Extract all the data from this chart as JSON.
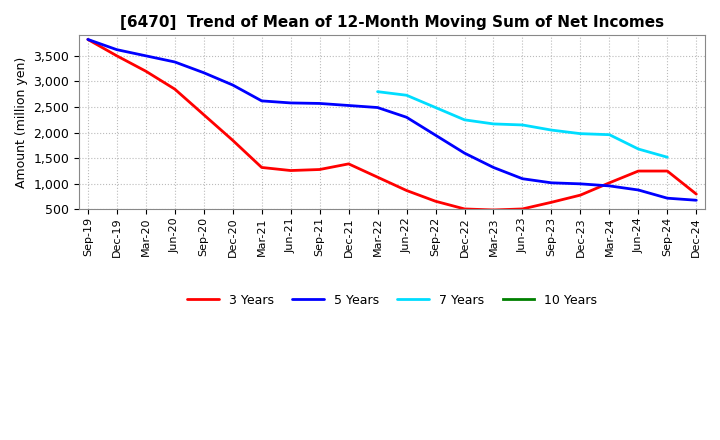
{
  "title": "[6470]  Trend of Mean of 12-Month Moving Sum of Net Incomes",
  "ylabel": "Amount (million yen)",
  "background_color": "#ffffff",
  "plot_background": "#ffffff",
  "grid_color": "#aaaaaa",
  "ylim": [
    500,
    3900
  ],
  "yticks": [
    500,
    1000,
    1500,
    2000,
    2500,
    3000,
    3500
  ],
  "x_labels": [
    "Sep-19",
    "Dec-19",
    "Mar-20",
    "Jun-20",
    "Sep-20",
    "Dec-20",
    "Mar-21",
    "Jun-21",
    "Sep-21",
    "Dec-21",
    "Mar-22",
    "Jun-22",
    "Sep-22",
    "Dec-22",
    "Mar-23",
    "Jun-23",
    "Sep-23",
    "Dec-23",
    "Mar-24",
    "Jun-24",
    "Sep-24",
    "Dec-24"
  ],
  "series": {
    "3 Years": {
      "color": "#ff0000",
      "linewidth": 2.0,
      "data_x": [
        0,
        1,
        2,
        3,
        4,
        5,
        6,
        7,
        8,
        9,
        10,
        11,
        12,
        13,
        14,
        15,
        16,
        17,
        18,
        19,
        20,
        21
      ],
      "data_y": [
        3820,
        3500,
        3200,
        2850,
        2350,
        1850,
        1320,
        1260,
        1280,
        1390,
        1130,
        870,
        660,
        510,
        490,
        510,
        640,
        780,
        1020,
        1250,
        1250,
        800
      ]
    },
    "5 Years": {
      "color": "#0000ff",
      "linewidth": 2.0,
      "data_x": [
        0,
        1,
        2,
        3,
        4,
        5,
        6,
        7,
        8,
        9,
        10,
        11,
        12,
        13,
        14,
        15,
        16,
        17,
        18,
        19,
        20,
        21
      ],
      "data_y": [
        3820,
        3620,
        3500,
        3380,
        3170,
        2930,
        2620,
        2580,
        2570,
        2530,
        2490,
        2300,
        1950,
        1600,
        1320,
        1100,
        1020,
        1000,
        960,
        880,
        720,
        680
      ]
    },
    "7 Years": {
      "color": "#00ddff",
      "linewidth": 2.0,
      "data_x": [
        10,
        11,
        12,
        13,
        14,
        15,
        16,
        17,
        18,
        19,
        20
      ],
      "data_y": [
        2800,
        2730,
        2490,
        2250,
        2170,
        2150,
        2050,
        1980,
        1960,
        1680,
        1520
      ]
    },
    "10 Years": {
      "color": "#008000",
      "linewidth": 2.0,
      "data_x": [],
      "data_y": []
    }
  }
}
